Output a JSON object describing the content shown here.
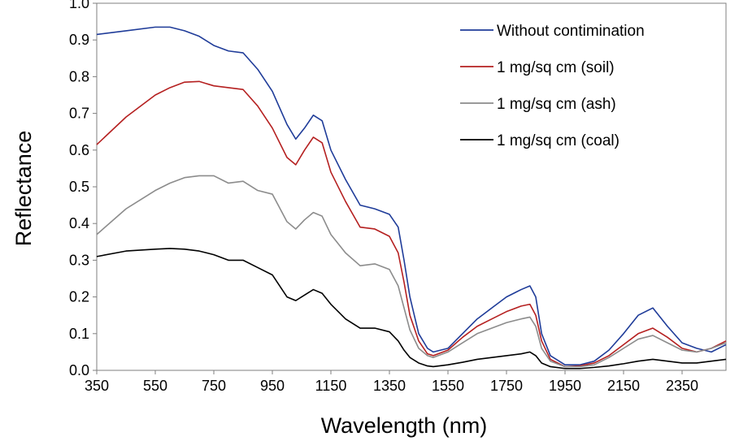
{
  "chart_data": {
    "type": "line",
    "title": "",
    "xlabel": "Wavelength (nm)",
    "ylabel": "Reflectance",
    "xlim": [
      350,
      2500
    ],
    "ylim": [
      0.0,
      1.0
    ],
    "x_ticks": [
      350,
      550,
      750,
      950,
      1150,
      1350,
      1550,
      1750,
      1950,
      2150,
      2350
    ],
    "x_tick_labels": [
      "350",
      "550",
      "750",
      "950",
      "1150",
      "1350",
      "1550",
      "1750",
      "1950",
      "2150",
      "2350"
    ],
    "y_ticks": [
      0.0,
      0.1,
      0.2,
      0.3,
      0.4,
      0.5,
      0.6,
      0.7,
      0.8,
      0.9,
      1.0
    ],
    "y_tick_labels": [
      "0.0",
      "0.1",
      "0.2",
      "0.3",
      "0.4",
      "0.5",
      "0.6",
      "0.7",
      "0.8",
      "0.9",
      "1.0"
    ],
    "grid": false,
    "legend_position": "top-right",
    "series": [
      {
        "name": "Without contimination",
        "color": "#1f3c99",
        "x": [
          350,
          450,
          550,
          600,
          650,
          700,
          750,
          800,
          850,
          900,
          950,
          1000,
          1030,
          1060,
          1090,
          1120,
          1150,
          1200,
          1250,
          1300,
          1350,
          1380,
          1400,
          1420,
          1450,
          1480,
          1500,
          1550,
          1600,
          1650,
          1700,
          1750,
          1800,
          1830,
          1850,
          1870,
          1900,
          1950,
          2000,
          2050,
          2100,
          2150,
          2200,
          2250,
          2300,
          2350,
          2400,
          2450,
          2500
        ],
        "y": [
          0.915,
          0.925,
          0.935,
          0.935,
          0.925,
          0.91,
          0.885,
          0.87,
          0.865,
          0.82,
          0.76,
          0.67,
          0.63,
          0.66,
          0.695,
          0.68,
          0.6,
          0.52,
          0.45,
          0.44,
          0.425,
          0.39,
          0.3,
          0.2,
          0.1,
          0.06,
          0.05,
          0.06,
          0.1,
          0.14,
          0.17,
          0.2,
          0.22,
          0.23,
          0.2,
          0.1,
          0.04,
          0.015,
          0.015,
          0.025,
          0.055,
          0.1,
          0.15,
          0.17,
          0.12,
          0.075,
          0.06,
          0.05,
          0.07
        ]
      },
      {
        "name": "1 mg/sq cm (soil)",
        "color": "#b52020",
        "x": [
          350,
          450,
          550,
          600,
          650,
          700,
          750,
          800,
          850,
          900,
          950,
          1000,
          1030,
          1060,
          1090,
          1120,
          1150,
          1200,
          1250,
          1300,
          1350,
          1380,
          1400,
          1420,
          1450,
          1480,
          1500,
          1550,
          1600,
          1650,
          1700,
          1750,
          1800,
          1830,
          1850,
          1870,
          1900,
          1950,
          2000,
          2050,
          2100,
          2150,
          2200,
          2250,
          2300,
          2350,
          2400,
          2450,
          2500
        ],
        "y": [
          0.615,
          0.69,
          0.75,
          0.77,
          0.785,
          0.787,
          0.775,
          0.77,
          0.765,
          0.72,
          0.66,
          0.58,
          0.56,
          0.6,
          0.635,
          0.62,
          0.54,
          0.46,
          0.39,
          0.385,
          0.365,
          0.32,
          0.24,
          0.15,
          0.08,
          0.045,
          0.04,
          0.055,
          0.09,
          0.12,
          0.14,
          0.16,
          0.175,
          0.18,
          0.15,
          0.08,
          0.03,
          0.01,
          0.012,
          0.02,
          0.04,
          0.07,
          0.1,
          0.115,
          0.09,
          0.06,
          0.05,
          0.06,
          0.08
        ]
      },
      {
        "name": "1 mg/sq cm (ash)",
        "color": "#8c8c8c",
        "x": [
          350,
          450,
          550,
          600,
          650,
          700,
          750,
          800,
          850,
          900,
          950,
          1000,
          1030,
          1060,
          1090,
          1120,
          1150,
          1200,
          1250,
          1300,
          1350,
          1380,
          1400,
          1420,
          1450,
          1480,
          1500,
          1550,
          1600,
          1650,
          1700,
          1750,
          1800,
          1830,
          1850,
          1870,
          1900,
          1950,
          2000,
          2050,
          2100,
          2150,
          2200,
          2250,
          2300,
          2350,
          2400,
          2450,
          2500
        ],
        "y": [
          0.37,
          0.44,
          0.49,
          0.51,
          0.525,
          0.53,
          0.53,
          0.51,
          0.515,
          0.49,
          0.48,
          0.405,
          0.385,
          0.41,
          0.43,
          0.42,
          0.37,
          0.32,
          0.285,
          0.29,
          0.275,
          0.23,
          0.17,
          0.11,
          0.06,
          0.04,
          0.035,
          0.05,
          0.075,
          0.1,
          0.115,
          0.13,
          0.14,
          0.145,
          0.12,
          0.06,
          0.025,
          0.01,
          0.01,
          0.015,
          0.035,
          0.06,
          0.085,
          0.095,
          0.075,
          0.055,
          0.05,
          0.06,
          0.075
        ]
      },
      {
        "name": "1 mg/sq cm (coal)",
        "color": "#000000",
        "x": [
          350,
          450,
          550,
          600,
          650,
          700,
          750,
          800,
          850,
          900,
          950,
          1000,
          1030,
          1060,
          1090,
          1120,
          1150,
          1200,
          1250,
          1300,
          1350,
          1380,
          1400,
          1420,
          1450,
          1480,
          1500,
          1550,
          1600,
          1650,
          1700,
          1750,
          1800,
          1830,
          1850,
          1870,
          1900,
          1950,
          2000,
          2050,
          2100,
          2150,
          2200,
          2250,
          2300,
          2350,
          2400,
          2450,
          2500
        ],
        "y": [
          0.31,
          0.325,
          0.33,
          0.332,
          0.33,
          0.325,
          0.315,
          0.3,
          0.3,
          0.28,
          0.26,
          0.2,
          0.19,
          0.205,
          0.22,
          0.21,
          0.18,
          0.14,
          0.115,
          0.115,
          0.105,
          0.08,
          0.055,
          0.035,
          0.02,
          0.012,
          0.01,
          0.015,
          0.022,
          0.03,
          0.035,
          0.04,
          0.045,
          0.05,
          0.04,
          0.02,
          0.01,
          0.005,
          0.005,
          0.008,
          0.012,
          0.018,
          0.025,
          0.03,
          0.025,
          0.02,
          0.02,
          0.025,
          0.03
        ]
      }
    ],
    "legend_labels": [
      "Without contimination",
      "1 mg/sq cm (soil)",
      "1 mg/sq cm (ash)",
      "1 mg/sq cm (coal)"
    ]
  }
}
